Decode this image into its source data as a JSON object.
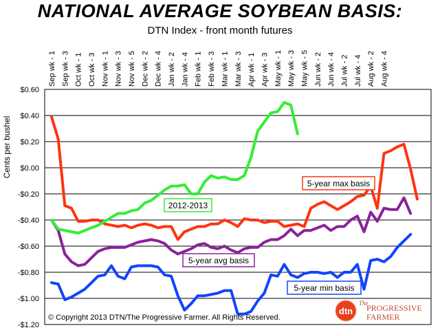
{
  "title": "NATIONAL AVERAGE SOYBEAN BASIS:",
  "subtitle": "DTN Index - front month futures",
  "copyright": "© Copyright 2013 DTN/The Progressive Farmer. All Rights Reserved.",
  "logo": {
    "mark": "dtn",
    "line1": "The",
    "line2": "PROGRESSIVE",
    "line3": "FARMER"
  },
  "chart_data": {
    "type": "line",
    "title": "NATIONAL AVERAGE SOYBEAN BASIS:",
    "subtitle": "DTN Index - front month futures",
    "ylabel": "Cents per bushel",
    "xlabel": "",
    "ylim": [
      -1.2,
      0.6
    ],
    "y_ticks": [
      0.6,
      0.4,
      0.2,
      0.0,
      -0.2,
      -0.4,
      -0.6,
      -0.8,
      -1.0,
      -1.2
    ],
    "y_tick_labels": [
      "$0.60",
      "$0.40",
      "$0.20",
      "$0.00",
      "-$0.20",
      "-$0.40",
      "-$0.60",
      "-$0.80",
      "-$1.00",
      "-$1.20"
    ],
    "x_tick_labels": [
      "Sep wk - 1",
      "Sep wk - 3",
      "Oct wk - 1",
      "Oct wk - 3",
      "Nov wk - 1",
      "Nov wk - 3",
      "Nov wk - 5",
      "Dec wk - 2",
      "Dec wk - 4",
      "Jan wk - 2",
      "Jan wk - 4",
      "Feb wk - 1",
      "Feb wk - 3",
      "Mar wk - 1",
      "Mar wk - 3",
      "Apr wk - 1",
      "Apr wk - 3",
      "May wk - 1",
      "May wk - 3",
      "May wk - 5",
      "Jun wk - 2",
      "Jun wk - 4",
      "Jul wk - 2",
      "Jul wk - 4",
      "Aug wk - 2",
      "Aug wk - 4"
    ],
    "grid": true,
    "series": [
      {
        "name": "2012-2013",
        "color": "#33ee33",
        "values": [
          -0.4,
          -0.47,
          -0.48,
          -0.49,
          -0.5,
          -0.48,
          -0.46,
          -0.44,
          -0.41,
          -0.38,
          -0.35,
          -0.35,
          -0.33,
          -0.32,
          -0.27,
          -0.25,
          -0.21,
          -0.17,
          -0.14,
          -0.14,
          -0.13,
          -0.2,
          -0.2,
          -0.11,
          -0.06,
          -0.08,
          -0.07,
          -0.09,
          -0.09,
          -0.06,
          0.08,
          0.28,
          0.35,
          0.42,
          0.43,
          0.5,
          0.48,
          0.26
        ]
      },
      {
        "name": "5-year max basis",
        "color": "#ff3311",
        "values": [
          0.39,
          0.22,
          -0.29,
          -0.31,
          -0.41,
          -0.41,
          -0.4,
          -0.4,
          -0.43,
          -0.44,
          -0.45,
          -0.44,
          -0.46,
          -0.44,
          -0.43,
          -0.44,
          -0.46,
          -0.45,
          -0.45,
          -0.55,
          -0.49,
          -0.47,
          -0.45,
          -0.45,
          -0.43,
          -0.43,
          -0.4,
          -0.42,
          -0.45,
          -0.39,
          -0.4,
          -0.4,
          -0.42,
          -0.41,
          -0.41,
          -0.45,
          -0.44,
          -0.43,
          -0.45,
          -0.31,
          -0.28,
          -0.26,
          -0.29,
          -0.32,
          -0.29,
          -0.26,
          -0.22,
          -0.21,
          -0.14,
          -0.31,
          0.11,
          0.13,
          0.16,
          0.18,
          -0.01,
          -0.24
        ]
      },
      {
        "name": "5-year avg basis",
        "color": "#882299",
        "values": [
          -0.4,
          -0.48,
          -0.66,
          -0.72,
          -0.75,
          -0.74,
          -0.69,
          -0.64,
          -0.62,
          -0.61,
          -0.61,
          -0.61,
          -0.59,
          -0.57,
          -0.56,
          -0.55,
          -0.56,
          -0.58,
          -0.63,
          -0.66,
          -0.64,
          -0.62,
          -0.59,
          -0.58,
          -0.61,
          -0.62,
          -0.6,
          -0.63,
          -0.65,
          -0.62,
          -0.61,
          -0.61,
          -0.57,
          -0.55,
          -0.55,
          -0.52,
          -0.47,
          -0.52,
          -0.48,
          -0.48,
          -0.46,
          -0.44,
          -0.48,
          -0.45,
          -0.45,
          -0.4,
          -0.37,
          -0.49,
          -0.34,
          -0.41,
          -0.31,
          -0.32,
          -0.32,
          -0.23,
          -0.35
        ]
      },
      {
        "name": "5-year min basis",
        "color": "#1144ff",
        "values": [
          -0.88,
          -0.89,
          -1.01,
          -0.99,
          -0.96,
          -0.93,
          -0.88,
          -0.83,
          -0.82,
          -0.75,
          -0.83,
          -0.85,
          -0.76,
          -0.75,
          -0.75,
          -0.75,
          -0.76,
          -0.82,
          -0.83,
          -0.98,
          -1.09,
          -1.04,
          -0.98,
          -0.98,
          -0.97,
          -0.96,
          -0.94,
          -0.94,
          -1.12,
          -1.12,
          -1.1,
          -1.02,
          -0.96,
          -0.82,
          -0.83,
          -0.74,
          -0.82,
          -0.84,
          -0.81,
          -0.8,
          -0.8,
          -0.81,
          -0.8,
          -0.84,
          -0.8,
          -0.8,
          -0.74,
          -0.93,
          -0.71,
          -0.7,
          -0.72,
          -0.68,
          -0.61,
          -0.56,
          -0.51
        ]
      }
    ],
    "annotations": [
      {
        "text": "2012-2013",
        "series": "2012-2013"
      },
      {
        "text": "5-year max basis",
        "series": "5-year max basis"
      },
      {
        "text": "5-year avg basis",
        "series": "5-year avg basis"
      },
      {
        "text": "5-year min basis",
        "series": "5-year min basis"
      }
    ]
  }
}
